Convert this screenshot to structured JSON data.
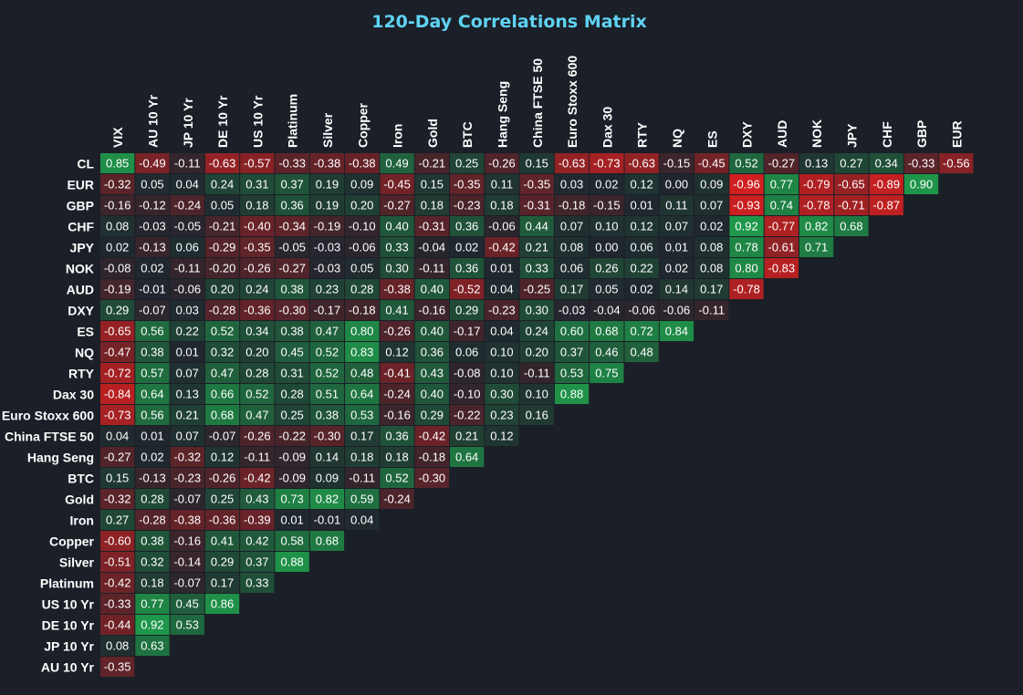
{
  "colors": {
    "background": "#1b1f27",
    "title": "#5fd3f3",
    "positive": "#1fa14c",
    "negative": "#d61f1f",
    "text": "#ffffff"
  },
  "chart_data": {
    "type": "heatmap",
    "title": "120-Day Correlations Matrix",
    "colorscale": "red (negative) to green (positive), dark near zero",
    "range": [
      -1,
      1
    ],
    "columns": [
      "VIX",
      "AU 10 Yr",
      "JP 10 Yr",
      "DE 10 Yr",
      "US 10 Yr",
      "Platinum",
      "Silver",
      "Copper",
      "Iron",
      "Gold",
      "BTC",
      "Hang Seng",
      "China FTSE 50",
      "Euro Stoxx 600",
      "Dax 30",
      "RTY",
      "NQ",
      "ES",
      "DXY",
      "AUD",
      "NOK",
      "JPY",
      "CHF",
      "GBP",
      "EUR"
    ],
    "rows": [
      {
        "label": "CL",
        "values": [
          "0.85",
          "-0.49",
          "-0.11",
          "-0.63",
          "-0.57",
          "-0.33",
          "-0.38",
          "-0.38",
          "0.49",
          "-0.21",
          "0.25",
          "-0.26",
          "0.15",
          "-0.63",
          "-0.73",
          "-0.63",
          "-0.15",
          "-0.45",
          "0.52",
          "-0.27",
          "0.13",
          "0.27",
          "0.34",
          "-0.33",
          "-0.56"
        ]
      },
      {
        "label": "EUR",
        "values": [
          "-0.32",
          "0.05",
          "0.04",
          "0.24",
          "0.31",
          "0.37",
          "0.19",
          "0.09",
          "-0.45",
          "0.15",
          "-0.35",
          "0.11",
          "-0.35",
          "0.03",
          "0.02",
          "0.12",
          "0.00",
          "0.09",
          "-0.96",
          "0.77",
          "-0.79",
          "-0.65",
          "-0.89",
          "0.90"
        ]
      },
      {
        "label": "GBP",
        "values": [
          "-0.16",
          "-0.12",
          "-0.24",
          "0.05",
          "0.18",
          "0.36",
          "0.19",
          "0.20",
          "-0.27",
          "0.18",
          "-0.23",
          "0.18",
          "-0.31",
          "-0.18",
          "-0.15",
          "0.01",
          "0.11",
          "0.07",
          "-0.93",
          "0.74",
          "-0.78",
          "-0.71",
          "-0.87"
        ]
      },
      {
        "label": "CHF",
        "values": [
          "0.08",
          "-0.03",
          "-0.05",
          "-0.21",
          "-0.40",
          "-0.34",
          "-0.19",
          "-0.10",
          "0.40",
          "-0.31",
          "0.36",
          "-0.06",
          "0.44",
          "0.07",
          "0.10",
          "0.12",
          "0.07",
          "0.02",
          "0.92",
          "-0.77",
          "0.82",
          "0.68"
        ]
      },
      {
        "label": "JPY",
        "values": [
          "0.02",
          "-0.13",
          "0.06",
          "-0.29",
          "-0.35",
          "-0.05",
          "-0.03",
          "-0.06",
          "0.33",
          "-0.04",
          "0.02",
          "-0.42",
          "0.21",
          "0.08",
          "0.00",
          "0.06",
          "0.01",
          "0.08",
          "0.78",
          "-0.61",
          "0.71"
        ]
      },
      {
        "label": "NOK",
        "values": [
          "-0.08",
          "0.02",
          "-0.11",
          "-0.20",
          "-0.26",
          "-0.27",
          "-0.03",
          "0.05",
          "0.30",
          "-0.11",
          "0.36",
          "0.01",
          "0.33",
          "0.06",
          "0.26",
          "0.22",
          "0.02",
          "0.08",
          "0.80",
          "-0.83"
        ]
      },
      {
        "label": "AUD",
        "values": [
          "-0.19",
          "-0.01",
          "-0.06",
          "0.20",
          "0.24",
          "0.38",
          "0.23",
          "0.28",
          "-0.38",
          "0.40",
          "-0.52",
          "0.04",
          "-0.25",
          "0.17",
          "0.05",
          "0.02",
          "0.14",
          "0.17",
          "-0.78"
        ]
      },
      {
        "label": "DXY",
        "values": [
          "0.29",
          "-0.07",
          "0.03",
          "-0.28",
          "-0.36",
          "-0.30",
          "-0.17",
          "-0.18",
          "0.41",
          "-0.16",
          "0.29",
          "-0.23",
          "0.30",
          "-0.03",
          "-0.04",
          "-0.06",
          "-0.06",
          "-0.11"
        ]
      },
      {
        "label": "ES",
        "values": [
          "-0.65",
          "0.56",
          "0.22",
          "0.52",
          "0.34",
          "0.38",
          "0.47",
          "0.80",
          "-0.26",
          "0.40",
          "-0.17",
          "0.04",
          "0.24",
          "0.60",
          "0.68",
          "0.72",
          "0.84"
        ]
      },
      {
        "label": "NQ",
        "values": [
          "-0.47",
          "0.38",
          "0.01",
          "0.32",
          "0.20",
          "0.45",
          "0.52",
          "0.83",
          "0.12",
          "0.36",
          "0.06",
          "0.10",
          "0.20",
          "0.37",
          "0.46",
          "0.48"
        ]
      },
      {
        "label": "RTY",
        "values": [
          "-0.72",
          "0.57",
          "0.07",
          "0.47",
          "0.28",
          "0.31",
          "0.52",
          "0.48",
          "-0.41",
          "0.43",
          "-0.08",
          "0.10",
          "-0.11",
          "0.53",
          "0.75"
        ]
      },
      {
        "label": "Dax 30",
        "values": [
          "-0.84",
          "0.64",
          "0.13",
          "0.66",
          "0.52",
          "0.28",
          "0.51",
          "0.64",
          "-0.24",
          "0.40",
          "-0.10",
          "0.30",
          "0.10",
          "0.88"
        ]
      },
      {
        "label": "Euro Stoxx 600",
        "values": [
          "-0.73",
          "0.56",
          "0.21",
          "0.68",
          "0.47",
          "0.25",
          "0.38",
          "0.53",
          "-0.16",
          "0.29",
          "-0.22",
          "0.23",
          "0.16"
        ]
      },
      {
        "label": "China FTSE 50",
        "values": [
          "0.04",
          "0.01",
          "0.07",
          "-0.07",
          "-0.26",
          "-0.22",
          "-0.30",
          "0.17",
          "0.36",
          "-0.42",
          "0.21",
          "0.12"
        ]
      },
      {
        "label": "Hang Seng",
        "values": [
          "-0.27",
          "0.02",
          "-0.32",
          "0.12",
          "-0.11",
          "-0.09",
          "0.14",
          "0.18",
          "0.18",
          "-0.18",
          "0.64"
        ]
      },
      {
        "label": "BTC",
        "values": [
          "0.15",
          "-0.13",
          "-0.23",
          "-0.26",
          "-0.42",
          "-0.09",
          "0.09",
          "-0.11",
          "0.52",
          "-0.30"
        ]
      },
      {
        "label": "Gold",
        "values": [
          "-0.32",
          "0.28",
          "-0.07",
          "0.25",
          "0.43",
          "0.73",
          "0.82",
          "0.59",
          "-0.24"
        ]
      },
      {
        "label": "Iron",
        "values": [
          "0.27",
          "-0.28",
          "-0.38",
          "-0.36",
          "-0.39",
          "0.01",
          "-0.01",
          "0.04"
        ]
      },
      {
        "label": "Copper",
        "values": [
          "-0.60",
          "0.38",
          "-0.16",
          "0.41",
          "0.42",
          "0.58",
          "0.68"
        ]
      },
      {
        "label": "Silver",
        "values": [
          "-0.51",
          "0.32",
          "-0.14",
          "0.29",
          "0.37",
          "0.88"
        ]
      },
      {
        "label": "Platinum",
        "values": [
          "-0.42",
          "0.18",
          "-0.07",
          "0.17",
          "0.33"
        ]
      },
      {
        "label": "US 10 Yr",
        "values": [
          "-0.33",
          "0.77",
          "0.45",
          "0.86"
        ]
      },
      {
        "label": "DE 10 Yr",
        "values": [
          "-0.44",
          "0.92",
          "0.53"
        ]
      },
      {
        "label": "JP 10 Yr",
        "values": [
          "0.08",
          "0.63"
        ]
      },
      {
        "label": "AU 10 Yr",
        "values": [
          "-0.35"
        ]
      }
    ]
  }
}
